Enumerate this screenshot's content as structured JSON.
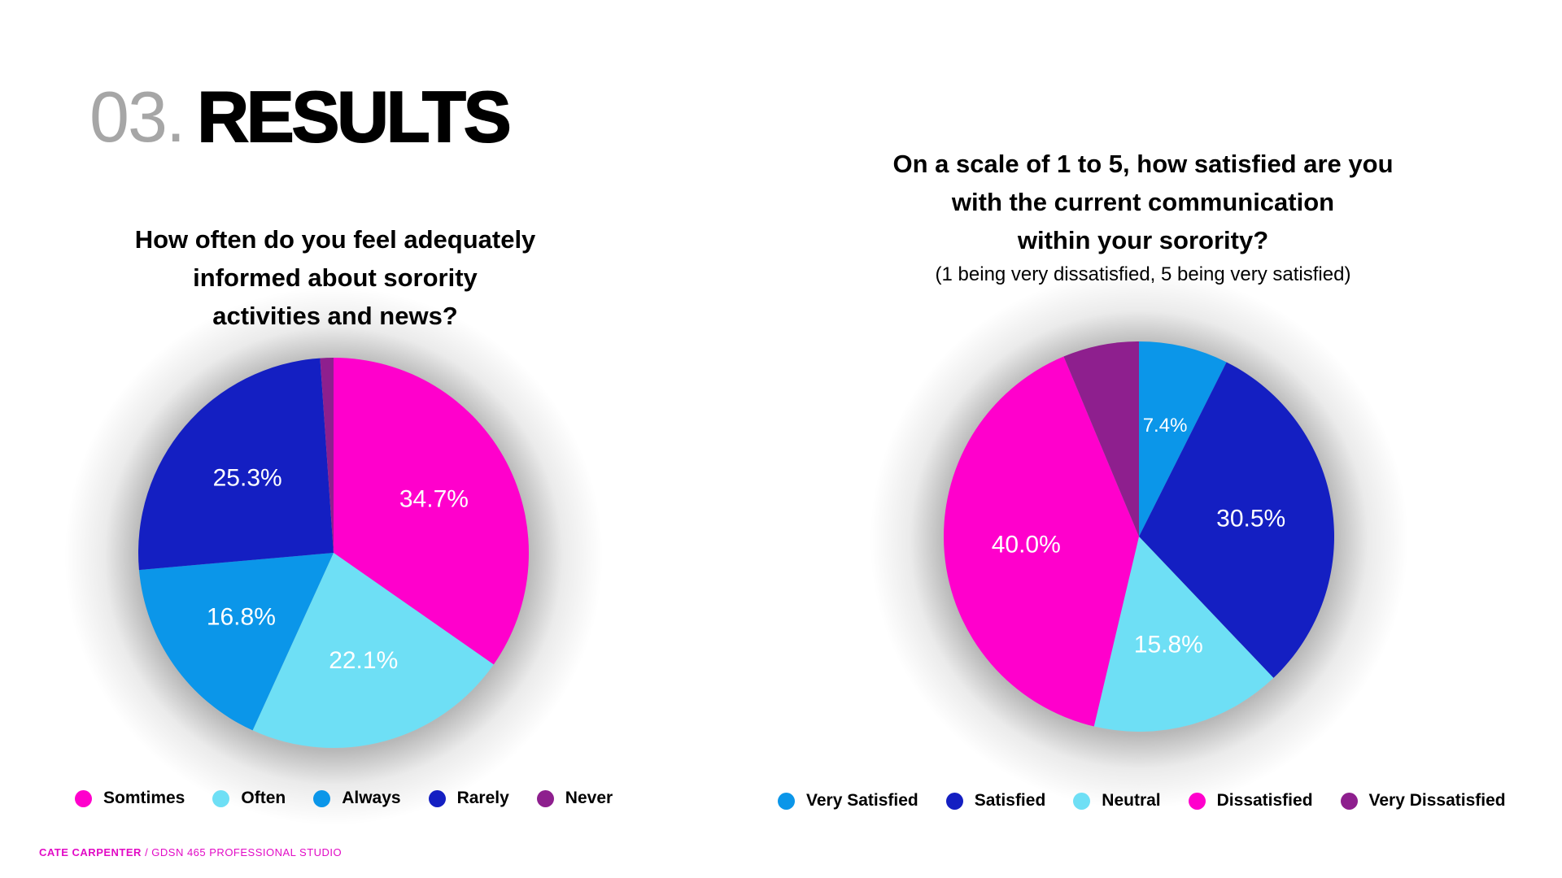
{
  "heading": {
    "number": "03.",
    "title": "RESULTS"
  },
  "footer": {
    "author": "CATE CARPENTER",
    "course": "/ GDSN 465 PROFESSIONAL STUDIO"
  },
  "chart_data": [
    {
      "type": "pie",
      "title_lines": [
        "How often do you feel adequately",
        "informed about sorority",
        "activities and news?"
      ],
      "subtitle": "",
      "legend_position": "bottom",
      "slices": [
        {
          "label": "Somtimes",
          "value": 34.7,
          "value_label": "34.7%",
          "color": "#ff00cc"
        },
        {
          "label": "Often",
          "value": 22.1,
          "value_label": "22.1%",
          "color": "#6edff5"
        },
        {
          "label": "Always",
          "value": 16.8,
          "value_label": "16.8%",
          "color": "#0b96e9"
        },
        {
          "label": "Rarely",
          "value": 25.3,
          "value_label": "25.3%",
          "color": "#141fc2"
        },
        {
          "label": "Never",
          "value": 1.1,
          "value_label": "",
          "color": "#8e1f8e"
        }
      ]
    },
    {
      "type": "pie",
      "title_lines": [
        "On a scale of 1 to 5, how satisfied are you",
        "with the current communication",
        "within your sorority?"
      ],
      "subtitle": "(1 being very dissatisfied, 5 being very satisfied)",
      "legend_position": "bottom",
      "slices": [
        {
          "label": "Very Satisfied",
          "value": 7.4,
          "value_label": "7.4%",
          "color": "#0b96e9"
        },
        {
          "label": "Satisfied",
          "value": 30.5,
          "value_label": "30.5%",
          "color": "#141fc2"
        },
        {
          "label": "Neutral",
          "value": 15.8,
          "value_label": "15.8%",
          "color": "#6edff5"
        },
        {
          "label": "Dissatisfied",
          "value": 40.0,
          "value_label": "40.0%",
          "color": "#ff00cc"
        },
        {
          "label": "Very Dissatisfied",
          "value": 6.3,
          "value_label": "",
          "color": "#8e1f8e"
        }
      ]
    }
  ]
}
